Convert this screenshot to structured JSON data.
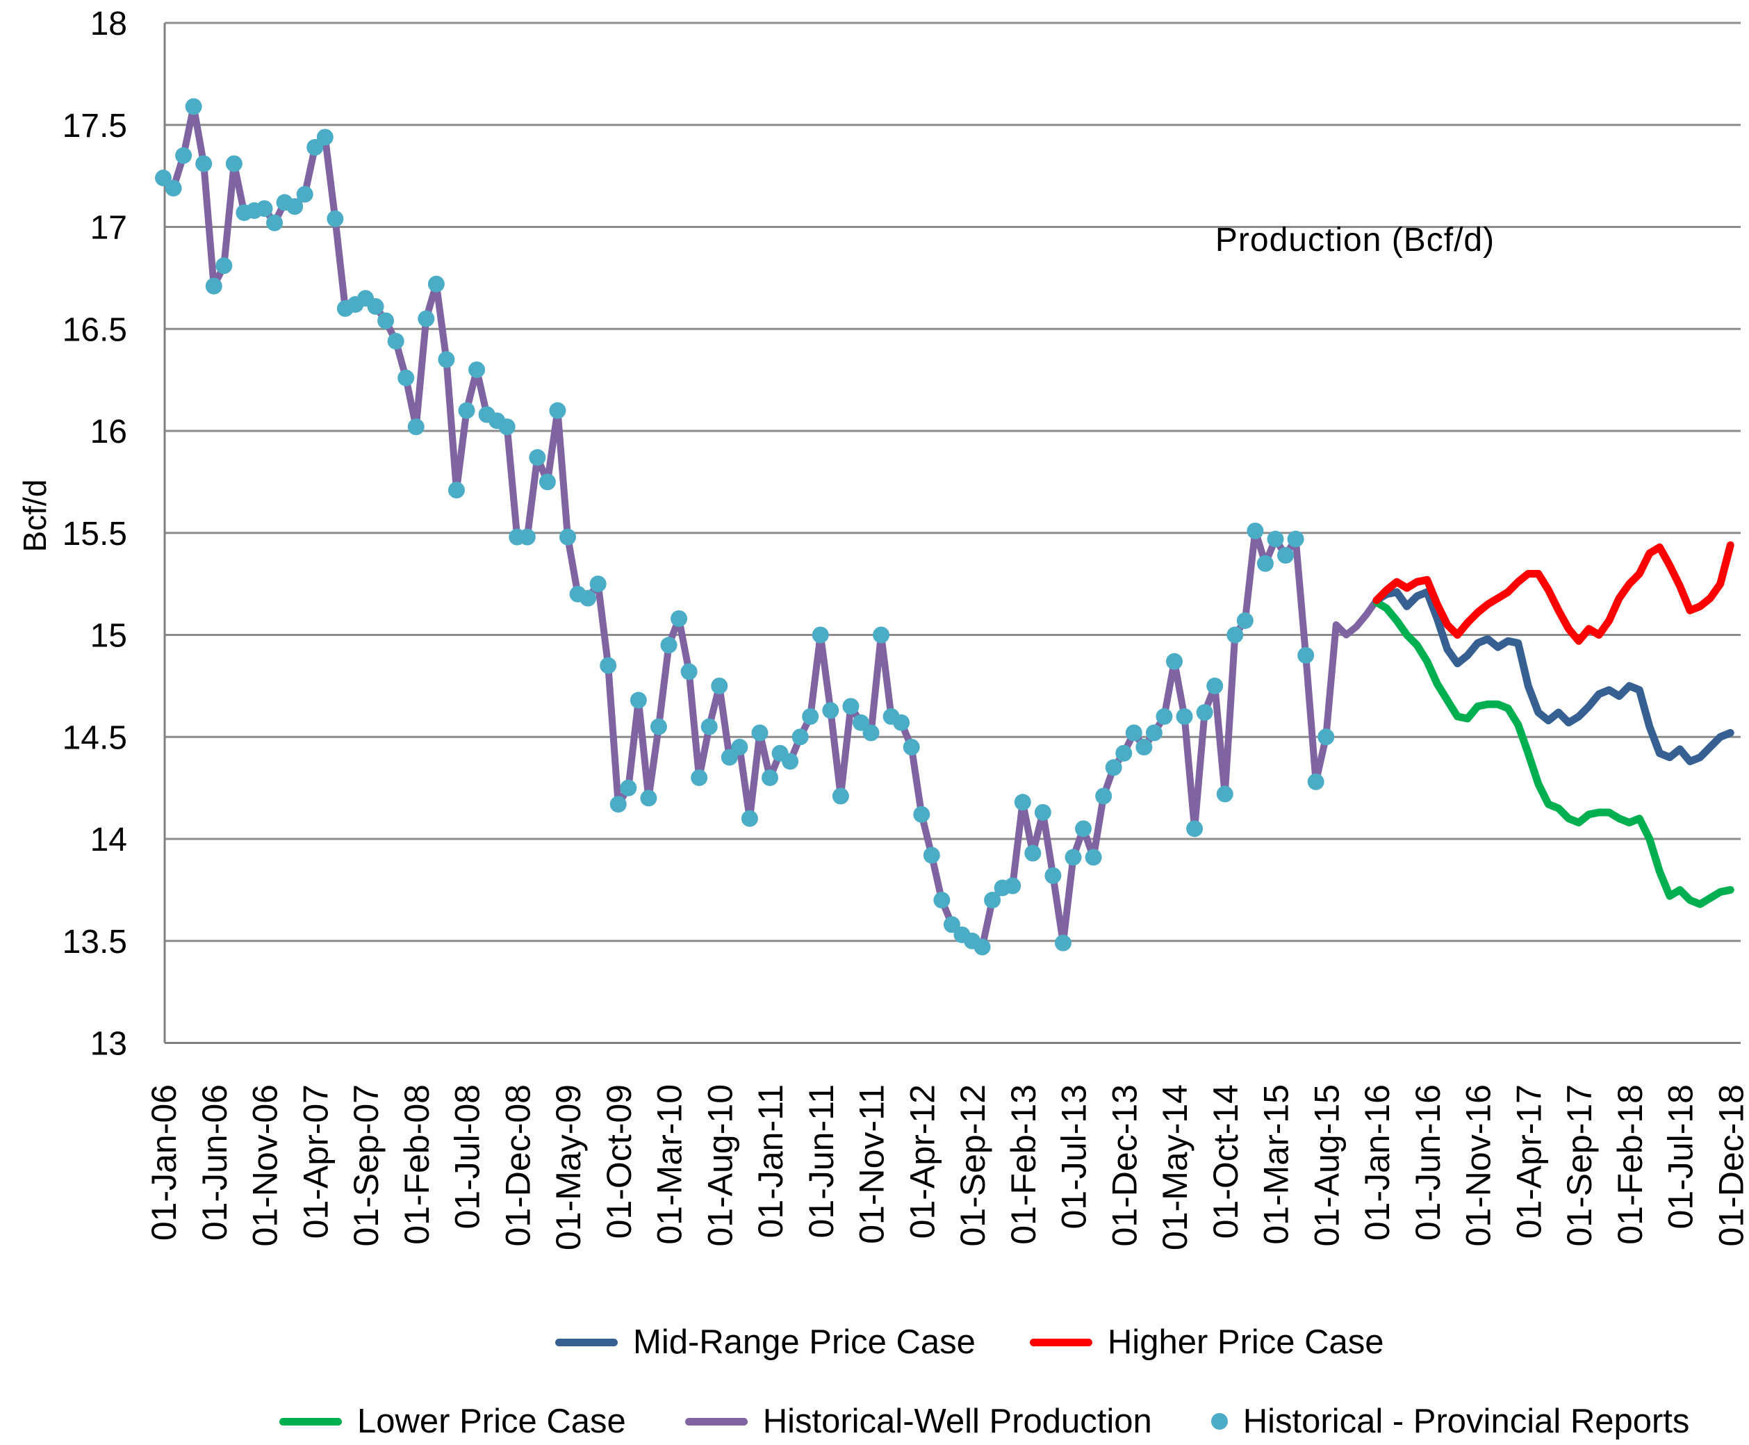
{
  "chart_data": {
    "type": "line",
    "title": "Production (Bcf/d)",
    "xlabel": "",
    "ylabel": "Bcf/d",
    "ylim": [
      13,
      18
    ],
    "y_tick_step": 0.5,
    "y_tick_labels": [
      "13",
      "13.5",
      "14",
      "14.5",
      "15",
      "15.5",
      "16",
      "16.5",
      "17",
      "17.5",
      "18"
    ],
    "grid": "horizontal",
    "months_total": 156,
    "x_start": "01-Jan-06",
    "x_end": "01-Dec-18",
    "x_tick_every_months": 5,
    "x_tick_labels": [
      "01-Jan-06",
      "01-Jun-06",
      "01-Nov-06",
      "01-Apr-07",
      "01-Sep-07",
      "01-Feb-08",
      "01-Jul-08",
      "01-Dec-08",
      "01-May-09",
      "01-Oct-09",
      "01-Mar-10",
      "01-Aug-10",
      "01-Jan-11",
      "01-Jun-11",
      "01-Nov-11",
      "01-Apr-12",
      "01-Sep-12",
      "01-Feb-13",
      "01-Jul-13",
      "01-Dec-13",
      "01-May-14",
      "01-Oct-14",
      "01-Mar-15",
      "01-Aug-15",
      "01-Jan-16",
      "01-Jun-16",
      "01-Nov-16",
      "01-Apr-17",
      "01-Sep-17",
      "01-Feb-18",
      "01-Jul-18",
      "01-Dec-18"
    ],
    "series": [
      {
        "name": "Historical-Well Production",
        "type": "line",
        "color": "#8064A2",
        "stroke_width": 10,
        "start_month_index": 0,
        "values": [
          17.24,
          17.19,
          17.35,
          17.59,
          17.31,
          16.71,
          16.81,
          17.31,
          17.07,
          17.08,
          17.09,
          17.02,
          17.12,
          17.1,
          17.16,
          17.39,
          17.44,
          17.04,
          16.6,
          16.62,
          16.65,
          16.61,
          16.54,
          16.44,
          16.26,
          16.02,
          16.55,
          16.72,
          16.35,
          15.71,
          16.1,
          16.3,
          16.08,
          16.05,
          16.02,
          15.48,
          15.48,
          15.87,
          15.75,
          16.1,
          15.48,
          15.2,
          15.18,
          15.25,
          14.85,
          14.17,
          14.25,
          14.68,
          14.2,
          14.55,
          14.95,
          15.08,
          14.82,
          14.3,
          14.55,
          14.75,
          14.4,
          14.45,
          14.1,
          14.52,
          14.3,
          14.42,
          14.38,
          14.5,
          14.6,
          15.0,
          14.63,
          14.21,
          14.65,
          14.57,
          14.52,
          15.0,
          14.6,
          14.57,
          14.45,
          14.12,
          13.92,
          13.7,
          13.58,
          13.53,
          13.5,
          13.47,
          13.7,
          13.76,
          13.77,
          14.18,
          13.93,
          14.13,
          13.82,
          13.49,
          13.91,
          14.05,
          13.91,
          14.21,
          14.35,
          14.42,
          14.52,
          14.45,
          14.52,
          14.6,
          14.87,
          14.6,
          14.05,
          14.62,
          14.75,
          14.22,
          15.0,
          15.07,
          15.51,
          15.35,
          15.47,
          15.39,
          15.47,
          14.9,
          14.28,
          14.5,
          15.05,
          15.0,
          15.04,
          15.1,
          15.17
        ]
      },
      {
        "name": "Historical - Provincial Reports",
        "type": "scatter",
        "color": "#4BACC6",
        "marker_radius": 12,
        "start_month_index": 0,
        "values": [
          17.24,
          17.19,
          17.35,
          17.59,
          17.31,
          16.71,
          16.81,
          17.31,
          17.07,
          17.08,
          17.09,
          17.02,
          17.12,
          17.1,
          17.16,
          17.39,
          17.44,
          17.04,
          16.6,
          16.62,
          16.65,
          16.61,
          16.54,
          16.44,
          16.26,
          16.02,
          16.55,
          16.72,
          16.35,
          15.71,
          16.1,
          16.3,
          16.08,
          16.05,
          16.02,
          15.48,
          15.48,
          15.87,
          15.75,
          16.1,
          15.48,
          15.2,
          15.18,
          15.25,
          14.85,
          14.17,
          14.25,
          14.68,
          14.2,
          14.55,
          14.95,
          15.08,
          14.82,
          14.3,
          14.55,
          14.75,
          14.4,
          14.45,
          14.1,
          14.52,
          14.3,
          14.42,
          14.38,
          14.5,
          14.6,
          15.0,
          14.63,
          14.21,
          14.65,
          14.57,
          14.52,
          15.0,
          14.6,
          14.57,
          14.45,
          14.12,
          13.92,
          13.7,
          13.58,
          13.53,
          13.5,
          13.47,
          13.7,
          13.76,
          13.77,
          14.18,
          13.93,
          14.13,
          13.82,
          13.49,
          13.91,
          14.05,
          13.91,
          14.21,
          14.35,
          14.42,
          14.52,
          14.45,
          14.52,
          14.6,
          14.87,
          14.6,
          14.05,
          14.62,
          14.75,
          14.22,
          15.0,
          15.07,
          15.51,
          15.35,
          15.47,
          15.39,
          15.47,
          14.9,
          14.28,
          14.5
        ]
      },
      {
        "name": "Lower Price Case",
        "type": "line",
        "color": "#00B050",
        "stroke_width": 11,
        "start_month_index": 120,
        "values": [
          15.16,
          15.13,
          15.07,
          15.0,
          14.95,
          14.87,
          14.76,
          14.68,
          14.6,
          14.59,
          14.65,
          14.66,
          14.66,
          14.64,
          14.56,
          14.42,
          14.27,
          14.17,
          14.15,
          14.1,
          14.08,
          14.12,
          14.13,
          14.13,
          14.1,
          14.08,
          14.1,
          14.0,
          13.84,
          13.72,
          13.75,
          13.7,
          13.68,
          13.71,
          13.74,
          13.75
        ]
      },
      {
        "name": "Mid-Range Price Case",
        "type": "line",
        "color": "#376092",
        "stroke_width": 11,
        "start_month_index": 120,
        "values": [
          15.17,
          15.2,
          15.21,
          15.14,
          15.19,
          15.21,
          15.08,
          14.93,
          14.86,
          14.9,
          14.96,
          14.98,
          14.94,
          14.97,
          14.96,
          14.75,
          14.62,
          14.58,
          14.62,
          14.57,
          14.6,
          14.65,
          14.71,
          14.73,
          14.7,
          14.75,
          14.73,
          14.55,
          14.42,
          14.4,
          14.44,
          14.38,
          14.4,
          14.45,
          14.5,
          14.52
        ]
      },
      {
        "name": "Higher Price Case",
        "type": "line",
        "color": "#FF0000",
        "stroke_width": 11,
        "start_month_index": 120,
        "values": [
          15.17,
          15.22,
          15.26,
          15.23,
          15.26,
          15.27,
          15.15,
          15.05,
          15.0,
          15.06,
          15.11,
          15.15,
          15.18,
          15.21,
          15.26,
          15.3,
          15.3,
          15.22,
          15.12,
          15.03,
          14.97,
          15.03,
          15.0,
          15.07,
          15.18,
          15.25,
          15.3,
          15.4,
          15.43,
          15.34,
          15.24,
          15.12,
          15.14,
          15.18,
          15.25,
          15.44
        ]
      }
    ],
    "legend": {
      "position": "bottom",
      "row1": [
        {
          "label": "Mid-Range Price Case",
          "color": "#376092",
          "marker": "line"
        },
        {
          "label": "Higher Price Case",
          "color": "#FF0000",
          "marker": "line"
        }
      ],
      "row2": [
        {
          "label": "Lower Price Case",
          "color": "#00B050",
          "marker": "line"
        },
        {
          "label": "Historical-Well Production",
          "color": "#8064A2",
          "marker": "line"
        },
        {
          "label": "Historical - Provincial Reports",
          "color": "#4BACC6",
          "marker": "dot"
        }
      ]
    },
    "plot_colors": {
      "gridline": "#8C8C8C",
      "axis": "#808080",
      "background": "#FFFFFF"
    }
  }
}
